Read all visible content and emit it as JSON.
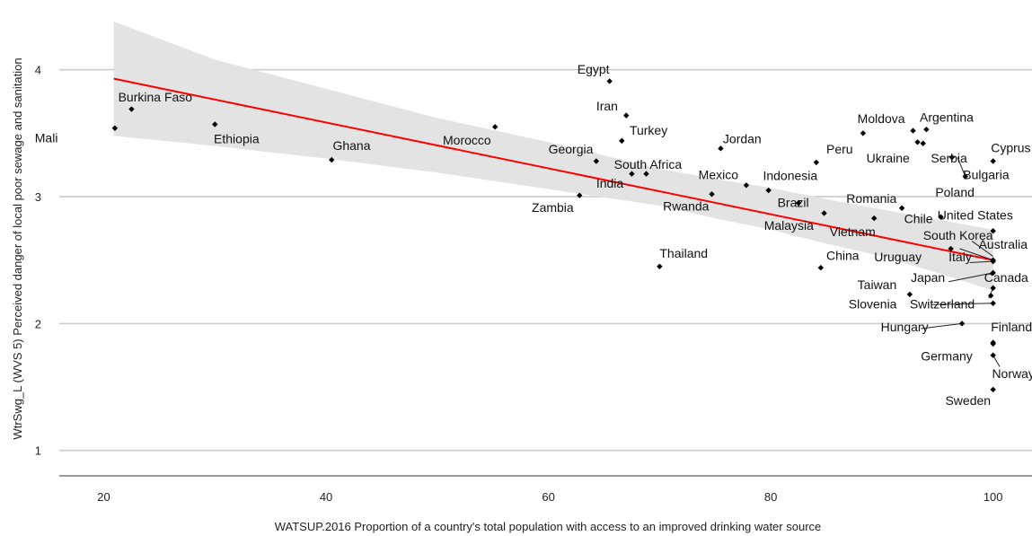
{
  "chart_data": {
    "type": "scatter",
    "title": "",
    "xlabel": "WATSUP.2016 Proportion of a country's total population with access to an improved drinking water source",
    "ylabel": "WtrSwg_L (WVS 5) Perceived danger of local poor sewage and sanitation",
    "xlim": [
      16,
      103.5
    ],
    "ylim": [
      0.8,
      4.55
    ],
    "x_ticks": [
      20,
      40,
      60,
      80,
      100
    ],
    "y_ticks": [
      1,
      2,
      3,
      4
    ],
    "grid": "horizontal",
    "legend": "none",
    "colors": {
      "points": "#000000",
      "trend_line": "#ff0000",
      "confidence_band": "#e3e3e3",
      "grid": "#cccccc"
    },
    "trend_line": {
      "x": [
        20.9,
        100
      ],
      "y": [
        3.93,
        2.5
      ]
    },
    "confidence_band": {
      "x": [
        20.9,
        30,
        40,
        50,
        60,
        70,
        75,
        80,
        85,
        90,
        95,
        100
      ],
      "upper": [
        4.38,
        4.08,
        3.85,
        3.62,
        3.43,
        3.22,
        3.14,
        3.07,
        2.98,
        2.9,
        2.82,
        2.74
      ],
      "lower": [
        3.48,
        3.4,
        3.3,
        3.19,
        3.06,
        2.93,
        2.83,
        2.74,
        2.63,
        2.53,
        2.4,
        2.26
      ]
    },
    "points": [
      {
        "label": "Mali",
        "x": 21.0,
        "y": 3.54
      },
      {
        "label": "Burkina Faso",
        "x": 22.5,
        "y": 3.69
      },
      {
        "label": "Ethiopia",
        "x": 30.0,
        "y": 3.57
      },
      {
        "label": "Ghana",
        "x": 40.5,
        "y": 3.29
      },
      {
        "label": "Morocco",
        "x": 55.2,
        "y": 3.55
      },
      {
        "label": "Egypt",
        "x": 65.5,
        "y": 3.91
      },
      {
        "label": "Iran",
        "x": 67.0,
        "y": 3.64
      },
      {
        "label": "Turkey",
        "x": 66.6,
        "y": 3.44
      },
      {
        "label": "Georgia",
        "x": 64.3,
        "y": 3.28
      },
      {
        "label": "South Africa",
        "x": 68.8,
        "y": 3.18
      },
      {
        "label": "India",
        "x": 67.5,
        "y": 3.18
      },
      {
        "label": "Zambia",
        "x": 62.8,
        "y": 3.01
      },
      {
        "label": "Thailand",
        "x": 70.0,
        "y": 2.45
      },
      {
        "label": "Rwanda",
        "x": 74.7,
        "y": 3.02
      },
      {
        "label": "Jordan",
        "x": 75.5,
        "y": 3.38
      },
      {
        "label": "Mexico",
        "x": 77.8,
        "y": 3.09
      },
      {
        "label": "Indonesia",
        "x": 79.8,
        "y": 3.05
      },
      {
        "label": "Brazil",
        "x": 82.5,
        "y": 2.95
      },
      {
        "label": "Malaysia",
        "x": 84.8,
        "y": 2.87
      },
      {
        "label": "Peru",
        "x": 84.1,
        "y": 3.27
      },
      {
        "label": "China",
        "x": 84.5,
        "y": 2.44
      },
      {
        "label": "Moldova",
        "x": 88.3,
        "y": 3.5
      },
      {
        "label": "Vietnam",
        "x": 89.3,
        "y": 2.83
      },
      {
        "label": "Romania",
        "x": 91.8,
        "y": 2.91
      },
      {
        "label": "Taiwan",
        "x": 92.5,
        "y": 2.23
      },
      {
        "label": "Argentina",
        "x": 92.8,
        "y": 3.52
      },
      {
        "label": "Ukraine",
        "x": 93.2,
        "y": 3.43
      },
      {
        "label": "Serbia",
        "x": 93.7,
        "y": 3.42
      },
      {
        "label": "Argentina-2",
        "x": 94.0,
        "y": 3.53
      },
      {
        "label": "Chile",
        "x": 95.3,
        "y": 2.84
      },
      {
        "label": "Poland",
        "x": 96.3,
        "y": 3.31
      },
      {
        "label": "South Korea",
        "x": 96.2,
        "y": 2.59
      },
      {
        "label": "Hungary",
        "x": 97.2,
        "y": 2.0
      },
      {
        "label": "Bulgaria",
        "x": 97.5,
        "y": 3.16
      },
      {
        "label": "Cyprus",
        "x": 100.0,
        "y": 3.28
      },
      {
        "label": "United States",
        "x": 100.0,
        "y": 2.73
      },
      {
        "label": "Australia",
        "x": 100.0,
        "y": 2.5
      },
      {
        "label": "Italy",
        "x": 100.0,
        "y": 2.49
      },
      {
        "label": "Japan",
        "x": 100.0,
        "y": 2.4
      },
      {
        "label": "Canada",
        "x": 100.0,
        "y": 2.28
      },
      {
        "label": "Switzerland",
        "x": 100.0,
        "y": 2.16
      },
      {
        "label": "Slovenia",
        "x": 99.8,
        "y": 2.22
      },
      {
        "label": "Finland",
        "x": 100.0,
        "y": 1.85
      },
      {
        "label": "Germany",
        "x": 100.0,
        "y": 1.75
      },
      {
        "label": "Norway",
        "x": 100.0,
        "y": 1.84
      },
      {
        "label": "Sweden",
        "x": 100.0,
        "y": 1.48
      }
    ],
    "labels": [
      {
        "text": "Mali",
        "lx": 13.8,
        "ly": 3.43
      },
      {
        "text": "Burkina Faso",
        "lx": 21.3,
        "ly": 3.75
      },
      {
        "text": "Ethiopia",
        "lx": 29.9,
        "ly": 3.42
      },
      {
        "text": "Ghana",
        "lx": 40.6,
        "ly": 3.37
      },
      {
        "text": "Morocco",
        "lx": 50.5,
        "ly": 3.41
      },
      {
        "text": "Egypt",
        "lx": 62.6,
        "ly": 3.97
      },
      {
        "text": "Iran",
        "lx": 64.3,
        "ly": 3.68
      },
      {
        "text": "Turkey",
        "lx": 67.3,
        "ly": 3.49
      },
      {
        "text": "Georgia",
        "lx": 60.0,
        "ly": 3.34
      },
      {
        "text": "South Africa",
        "lx": 65.9,
        "ly": 3.22
      },
      {
        "text": "India",
        "lx": 64.3,
        "ly": 3.07
      },
      {
        "text": "Zambia",
        "lx": 58.5,
        "ly": 2.88
      },
      {
        "text": "Thailand",
        "lx": 70.0,
        "ly": 2.52
      },
      {
        "text": "Rwanda",
        "lx": 70.3,
        "ly": 2.89
      },
      {
        "text": "Jordan",
        "lx": 75.7,
        "ly": 3.42
      },
      {
        "text": "Mexico",
        "lx": 73.5,
        "ly": 3.14
      },
      {
        "text": "Indonesia",
        "lx": 79.3,
        "ly": 3.13
      },
      {
        "text": "Brazil",
        "lx": 80.6,
        "ly": 2.92
      },
      {
        "text": "Malaysia",
        "lx": 79.4,
        "ly": 2.74
      },
      {
        "text": "Peru",
        "lx": 85.0,
        "ly": 3.34
      },
      {
        "text": "China",
        "lx": 85.0,
        "ly": 2.5
      },
      {
        "text": "Moldova",
        "lx": 87.8,
        "ly": 3.58
      },
      {
        "text": "Vietnam",
        "lx": 85.3,
        "ly": 2.69
      },
      {
        "text": "Romania",
        "lx": 86.8,
        "ly": 2.95
      },
      {
        "text": "Taiwan",
        "lx": 87.8,
        "ly": 2.27
      },
      {
        "text": "Argentina",
        "lx": 93.4,
        "ly": 3.59
      },
      {
        "text": "Ukraine",
        "lx": 88.6,
        "ly": 3.27
      },
      {
        "text": "Serbia",
        "lx": 94.4,
        "ly": 3.27
      },
      {
        "text": "Chile",
        "lx": 92.0,
        "ly": 2.79
      },
      {
        "text": "Poland",
        "lx": 94.8,
        "ly": 3.0
      },
      {
        "text": "United States",
        "lx": 95.0,
        "ly": 2.82
      },
      {
        "text": "South Korea",
        "lx": 93.7,
        "ly": 2.66
      },
      {
        "text": "Australia",
        "lx": 98.7,
        "ly": 2.59
      },
      {
        "text": "Uruguay",
        "lx": 89.3,
        "ly": 2.49
      },
      {
        "text": "Italy",
        "lx": 96.0,
        "ly": 2.49
      },
      {
        "text": "Cyprus",
        "lx": 99.8,
        "ly": 3.35
      },
      {
        "text": "Bulgaria",
        "lx": 97.3,
        "ly": 3.14
      },
      {
        "text": "Japan",
        "lx": 92.6,
        "ly": 2.33
      },
      {
        "text": "Canada",
        "lx": 99.2,
        "ly": 2.33
      },
      {
        "text": "Slovenia",
        "lx": 87.0,
        "ly": 2.12
      },
      {
        "text": "Switzerland",
        "lx": 92.5,
        "ly": 2.12
      },
      {
        "text": "Hungary",
        "lx": 89.9,
        "ly": 1.94
      },
      {
        "text": "Finland",
        "lx": 99.8,
        "ly": 1.94
      },
      {
        "text": "Germany",
        "lx": 93.5,
        "ly": 1.71
      },
      {
        "text": "Norway",
        "lx": 99.9,
        "ly": 1.57
      },
      {
        "text": "Sweden",
        "lx": 95.7,
        "ly": 1.36
      }
    ],
    "leader_lines": [
      {
        "x1": 96.8,
        "y1": 3.31,
        "x2": 97.5,
        "y2": 3.16
      },
      {
        "x1": 97.9,
        "y1": 2.48,
        "x2": 100.0,
        "y2": 2.49
      },
      {
        "x1": 97.0,
        "y1": 2.59,
        "x2": 100.0,
        "y2": 2.5
      },
      {
        "x1": 98.1,
        "y1": 2.65,
        "x2": 100.0,
        "y2": 2.53
      },
      {
        "x1": 96.0,
        "y1": 2.33,
        "x2": 100.0,
        "y2": 2.4
      },
      {
        "x1": 94.5,
        "y1": 2.15,
        "x2": 100.0,
        "y2": 2.16
      },
      {
        "x1": 93.5,
        "y1": 1.96,
        "x2": 97.2,
        "y2": 2.0
      },
      {
        "x1": 99.6,
        "y1": 2.2,
        "x2": 100.0,
        "y2": 2.28
      },
      {
        "x1": 100.6,
        "y1": 1.66,
        "x2": 100.0,
        "y2": 1.75
      }
    ]
  }
}
